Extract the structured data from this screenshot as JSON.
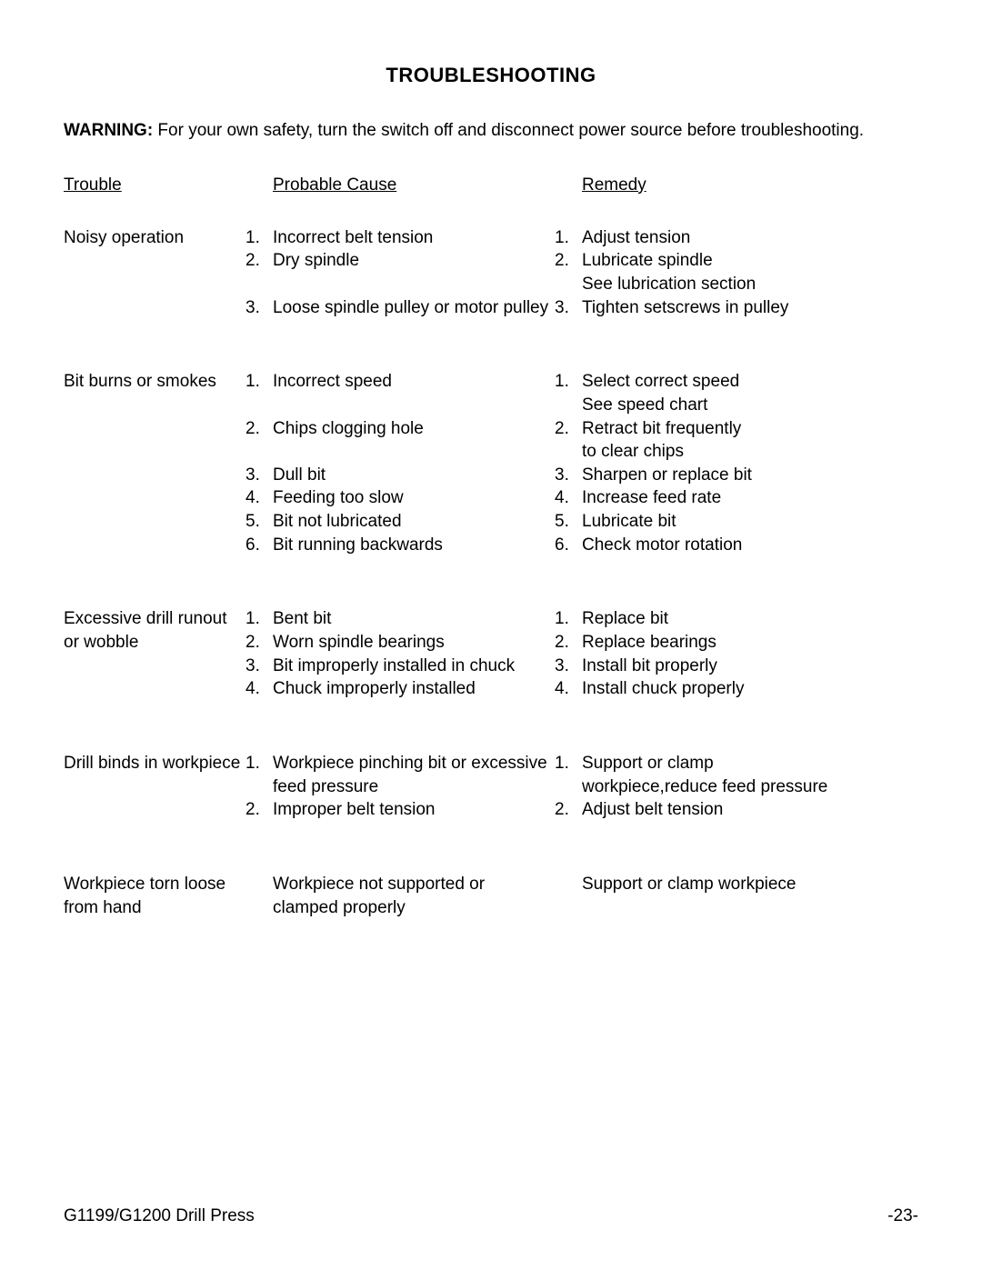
{
  "title": "TROUBLESHOOTING",
  "warning_label": "WARNING:",
  "warning_text": " For your own safety, turn the switch off and disconnect power source before troubleshooting.",
  "headers": {
    "trouble": "Trouble",
    "cause": "Probable Cause",
    "remedy": "Remedy"
  },
  "sections": [
    {
      "trouble": [
        "Noisy operation"
      ],
      "items": [
        {
          "n": "1.",
          "cause": "Incorrect belt tension",
          "rn": "1.",
          "remedy": "Adjust tension"
        },
        {
          "n": "2.",
          "cause": "Dry spindle",
          "rn": "2.",
          "remedy": "Lubricate spindle"
        },
        {
          "n": "",
          "cause": "",
          "rn": "",
          "remedy": "See lubrication section"
        },
        {
          "n": "3.",
          "cause": "Loose spindle pulley or motor pulley",
          "rn": "3.",
          "remedy": "Tighten setscrews in pulley"
        }
      ]
    },
    {
      "trouble": [
        "Bit burns or smokes"
      ],
      "items": [
        {
          "n": "1.",
          "cause": "Incorrect speed",
          "rn": "1.",
          "remedy": "Select correct speed"
        },
        {
          "n": "",
          "cause": "",
          "rn": "",
          "remedy": "See speed chart"
        },
        {
          "n": "2.",
          "cause": "Chips clogging hole",
          "rn": "2.",
          "remedy": "Retract bit frequently"
        },
        {
          "n": "",
          "cause": "",
          "rn": "",
          "remedy": "to clear chips"
        },
        {
          "n": "3.",
          "cause": "Dull bit",
          "rn": "3.",
          "remedy": "Sharpen or replace bit"
        },
        {
          "n": "4.",
          "cause": "Feeding too slow",
          "rn": "4.",
          "remedy": "Increase feed rate"
        },
        {
          "n": "5.",
          "cause": "Bit not lubricated",
          "rn": "5.",
          "remedy": "Lubricate bit"
        },
        {
          "n": "6.",
          "cause": "Bit running backwards",
          "rn": "6.",
          "remedy": "Check motor rotation"
        }
      ]
    },
    {
      "trouble": [
        "Excessive drill runout",
        "or wobble"
      ],
      "items": [
        {
          "n": "1.",
          "cause": "Bent bit",
          "rn": "1.",
          "remedy": "Replace bit"
        },
        {
          "n": "2.",
          "cause": "Worn spindle bearings",
          "rn": "2.",
          "remedy": "Replace bearings"
        },
        {
          "n": "3.",
          "cause": "Bit improperly installed in chuck",
          "rn": "3.",
          "remedy": "Install bit properly"
        },
        {
          "n": "4.",
          "cause": "Chuck improperly installed",
          "rn": "4.",
          "remedy": "Install chuck properly"
        }
      ]
    },
    {
      "trouble": [
        "Drill binds in workpiece"
      ],
      "items": [
        {
          "n": "1.",
          "cause": "Workpiece pinching bit or excessive",
          "rn": "1.",
          "remedy": "Support or clamp"
        },
        {
          "n": "",
          "cause": "feed pressure",
          "rn": "",
          "remedy": "workpiece,reduce feed pressure"
        },
        {
          "n": "2.",
          "cause": "Improper belt tension",
          "rn": "2.",
          "remedy": "Adjust belt tension"
        }
      ]
    },
    {
      "trouble": [
        "Workpiece torn loose",
        "from hand"
      ],
      "items": [
        {
          "n": "",
          "cause": "Workpiece not supported or",
          "rn": "",
          "remedy": "Support or clamp workpiece"
        },
        {
          "n": "",
          "cause": "clamped properly",
          "rn": "",
          "remedy": ""
        }
      ]
    }
  ],
  "footer": {
    "left": "G1199/G1200 Drill Press",
    "right": "-23-"
  }
}
